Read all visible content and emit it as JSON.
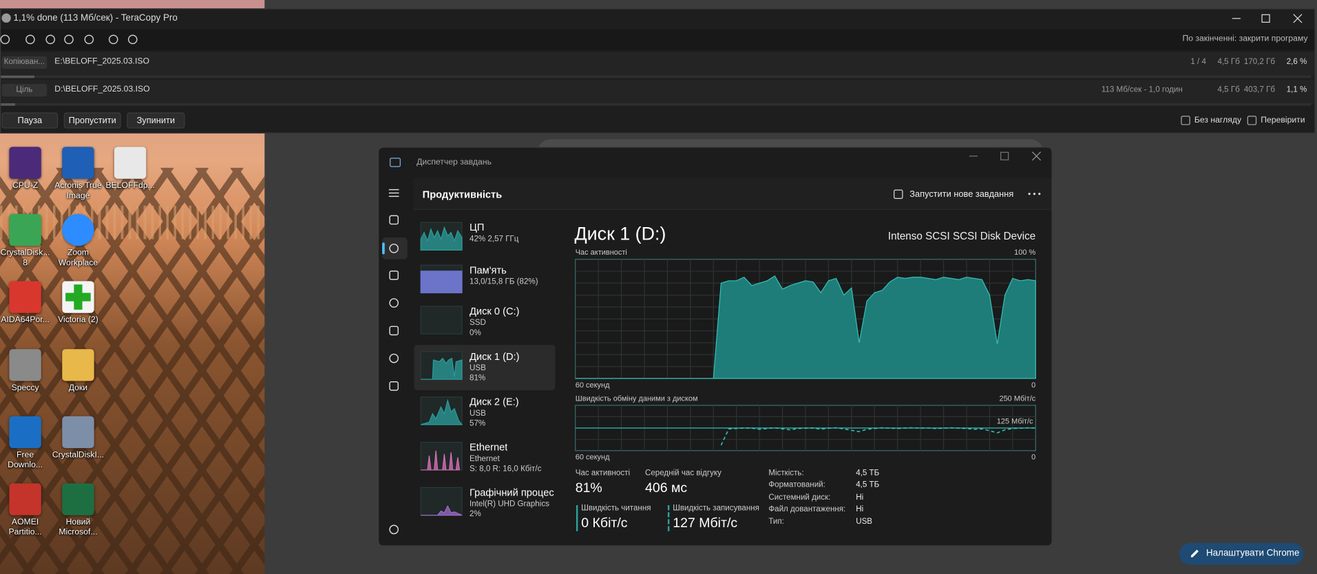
{
  "teracopy": {
    "title": "1,1% done (113 Мб/сек) - TeraCopy Pro",
    "after_finish": "По закінченні: закрити програму",
    "source": {
      "tag": "Копіюван...",
      "path": "E:\\BELOFF_2025.03.ISO",
      "count": "1 / 4",
      "size": "4,5 Гб",
      "free": "170,2 Гб",
      "percent": "2,6 %"
    },
    "target": {
      "tag": "Ціль",
      "path": "D:\\BELOFF_2025.03.ISO",
      "speed": "113 Мб/сек - 1,0 годин",
      "size": "4,5 Гб",
      "free": "403,7 Гб",
      "percent": "1,1 %"
    },
    "buttons": [
      "Пауза",
      "Пропустити",
      "Зупинити"
    ],
    "checkboxes": [
      "Без нагляду",
      "Перевірити"
    ]
  },
  "desktop_icons": [
    "CPU-Z",
    "Acronis True Image",
    "BELOFFdp...",
    "CrystalDisk... 8",
    "Zoom Workplace",
    "AIDA64Por...",
    "Victoria (2)",
    "Speccy",
    "Доки",
    "Free Downlo...",
    "CrystalDiskI...",
    "AOMEI Partitio...",
    "Новий Microsof..."
  ],
  "task_manager": {
    "title": "Диспетчер завдань",
    "section": "Продуктивність",
    "new_task": "Запустити нове завдання",
    "devices": [
      {
        "name": "ЦП",
        "lines": [
          "42% 2,57 ГГц"
        ]
      },
      {
        "name": "Пам'ять",
        "lines": [
          "13,0/15,8 ГБ (82%)"
        ]
      },
      {
        "name": "Диск 0 (C:)",
        "lines": [
          "SSD",
          "0%"
        ]
      },
      {
        "name": "Диск 1 (D:)",
        "lines": [
          "USB",
          "81%"
        ]
      },
      {
        "name": "Диск 2 (E:)",
        "lines": [
          "USB",
          "57%"
        ]
      },
      {
        "name": "Ethernet",
        "lines": [
          "Ethernet",
          "S: 8,0 R: 16,0 Кбіт/с"
        ]
      },
      {
        "name": "Графічний процес",
        "lines": [
          "Intel(R) UHD Graphics",
          "2%"
        ]
      }
    ],
    "disk_title": "Диск 1 (D:)",
    "device": "Intenso SCSI SCSI Disk Device",
    "activity_chart": {
      "type": "area",
      "label": "Час активності",
      "x_label": "60 секунд",
      "ylim": [
        0,
        100
      ],
      "yticks": [
        0,
        {
          "value": 100,
          "label": "100 %"
        }
      ],
      "values": [
        0,
        0,
        0,
        0,
        0,
        0,
        0,
        0,
        0,
        0,
        0,
        0,
        0,
        0,
        0,
        0,
        0,
        0,
        0,
        80,
        82,
        82,
        85,
        78,
        80,
        82,
        86,
        75,
        78,
        80,
        82,
        81,
        72,
        82,
        84,
        70,
        76,
        30,
        65,
        72,
        74,
        81,
        85,
        84,
        85,
        85,
        84,
        83,
        85,
        84,
        83,
        85,
        84,
        83,
        70,
        29,
        70,
        84,
        82,
        83,
        82
      ]
    },
    "transfer_chart": {
      "type": "line",
      "label": "Швидкість обміну даними з диском",
      "x_label": "60 секунд",
      "ylim": [
        0,
        250
      ],
      "yticks": [
        0,
        {
          "value": 125,
          "label": "125 Мбіт/с"
        },
        {
          "value": 250,
          "label": "250 Мбіт/с"
        }
      ],
      "values": [
        null,
        null,
        null,
        null,
        null,
        null,
        null,
        null,
        null,
        null,
        null,
        null,
        null,
        null,
        null,
        null,
        null,
        null,
        null,
        30,
        120,
        122,
        125,
        124,
        118,
        122,
        126,
        120,
        115,
        122,
        124,
        125,
        118,
        124,
        126,
        120,
        112,
        105,
        118,
        122,
        126,
        124,
        122,
        125,
        126,
        124,
        125,
        122,
        124,
        126,
        124,
        122,
        118,
        120,
        110,
        98,
        115,
        122,
        124,
        126,
        125
      ]
    },
    "stats": [
      {
        "label": "Час активності",
        "value": "81%"
      },
      {
        "label": "Середній час відгуку",
        "value": "406 мс"
      },
      {
        "label": "Швидкість читання",
        "value": "0 Кбіт/с"
      },
      {
        "label": "Швидкість записування",
        "value": "127 Мбіт/с"
      }
    ],
    "properties": [
      {
        "label": "Місткість:",
        "value": "4,5 ТБ"
      },
      {
        "label": "Форматований:",
        "value": "4,5 ТБ"
      },
      {
        "label": "Системний диск:",
        "value": "Ні"
      },
      {
        "label": "Файл довантаження:",
        "value": "Ні"
      },
      {
        "label": "Тип:",
        "value": "USB"
      }
    ]
  },
  "chrome_button": "Налаштувати Chrome"
}
